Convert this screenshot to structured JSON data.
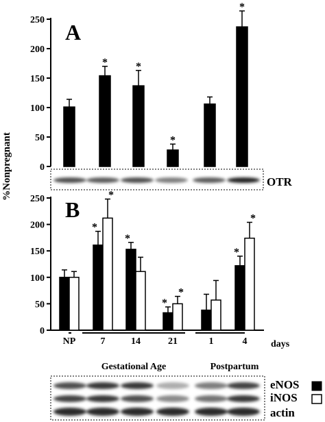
{
  "chart_data": [
    {
      "type": "bar",
      "panel_label": "A",
      "ylabel": "%Nonpregnant",
      "ylim": [
        0,
        250
      ],
      "yticks": [
        0,
        50,
        100,
        150,
        200,
        250
      ],
      "series": [
        {
          "name": "",
          "color": "#000000",
          "values": [
            101,
            154,
            137,
            28,
            106,
            237
          ],
          "errors": [
            13,
            16,
            26,
            10,
            12,
            27
          ],
          "significant": [
            false,
            true,
            true,
            true,
            false,
            true
          ]
        }
      ],
      "blot_label": "OTR"
    },
    {
      "type": "bar",
      "panel_label": "B",
      "ylim": [
        0,
        250
      ],
      "yticks": [
        0,
        50,
        100,
        150,
        200,
        250
      ],
      "categories": [
        "NP",
        "7",
        "14",
        "21",
        "1",
        "4"
      ],
      "x_unit": "days",
      "group_labels": [
        "Gestational Age",
        "Postpartum"
      ],
      "series": [
        {
          "name": "eNOS",
          "color": "#000000",
          "values": [
            100,
            161,
            153,
            33,
            38,
            122
          ],
          "errors": [
            14,
            26,
            13,
            11,
            30,
            18
          ],
          "significant": [
            false,
            true,
            true,
            true,
            false,
            true
          ]
        },
        {
          "name": "iNOS",
          "color": "#ffffff",
          "values": [
            100,
            212,
            111,
            50,
            57,
            174
          ],
          "errors": [
            11,
            36,
            27,
            14,
            37,
            30
          ],
          "significant": [
            false,
            true,
            false,
            true,
            false,
            true
          ]
        }
      ],
      "blot_labels": [
        "eNOS",
        "iNOS",
        "actin"
      ]
    }
  ],
  "significance_marker": "*"
}
